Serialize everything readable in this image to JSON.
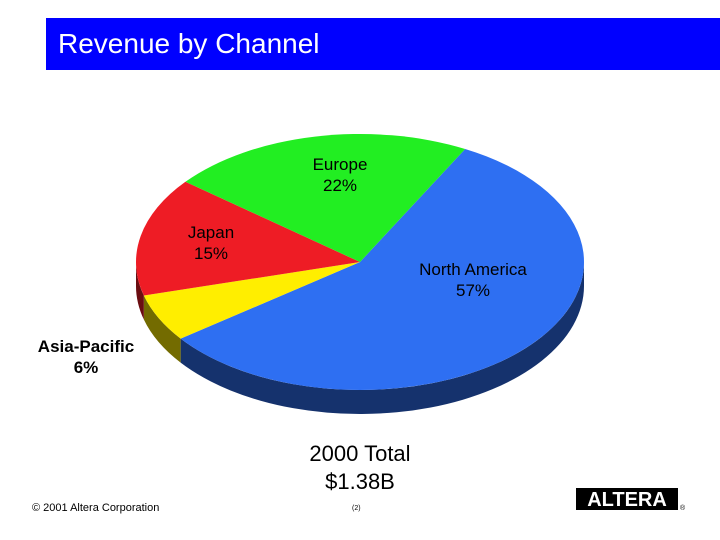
{
  "slide": {
    "title": "Revenue by Channel",
    "total_line1": "2000 Total",
    "total_line2": "$1.38B",
    "copyright": "© 2001 Altera Corporation",
    "page_number": "(2)",
    "logo_text": "ALTERA",
    "logo_mark": "®",
    "title_bar_color": "#0000ff"
  },
  "chart_data": {
    "type": "pie",
    "title": "Revenue by Channel",
    "slices": [
      {
        "name": "North America",
        "value": 57,
        "label": "57%",
        "color": "#2e6ff2"
      },
      {
        "name": "Asia-Pacific",
        "value": 6,
        "label": "6%",
        "color": "#ffee00"
      },
      {
        "name": "Japan",
        "value": 15,
        "label": "15%",
        "color": "#ee1c25"
      },
      {
        "name": "Europe",
        "value": 22,
        "label": "22%",
        "color": "#22ee22"
      }
    ]
  }
}
